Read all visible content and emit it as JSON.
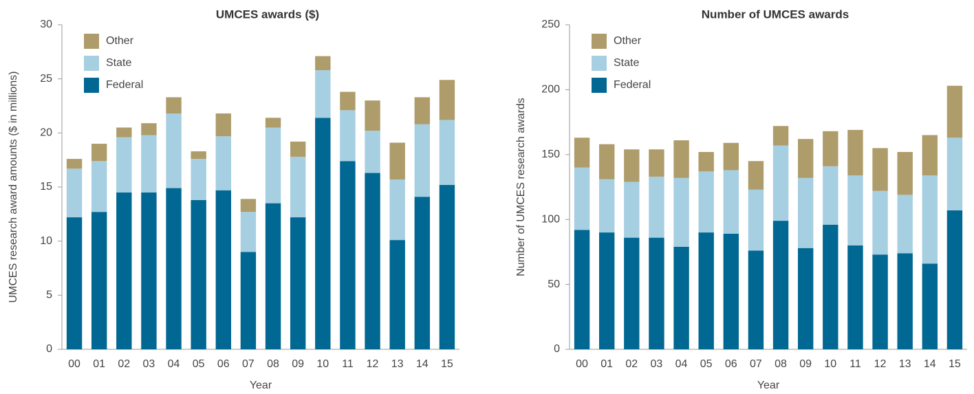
{
  "chart_data": [
    {
      "type": "bar",
      "stacked": true,
      "title": "UMCES awards ($)",
      "x_label": "Year",
      "y_label": "UMCES research award amounts ($ in millions)",
      "categories": [
        "00",
        "01",
        "02",
        "03",
        "04",
        "05",
        "06",
        "07",
        "08",
        "09",
        "10",
        "11",
        "12",
        "13",
        "14",
        "15"
      ],
      "series": [
        {
          "name": "Federal",
          "color": "#006892",
          "values": [
            12.2,
            12.7,
            14.5,
            14.5,
            14.9,
            13.8,
            14.7,
            9.0,
            13.5,
            12.2,
            21.4,
            17.4,
            16.3,
            10.1,
            14.1,
            15.2
          ]
        },
        {
          "name": "State",
          "color": "#a6cfe2",
          "values": [
            4.5,
            4.7,
            5.1,
            5.3,
            6.9,
            3.8,
            5.0,
            3.7,
            7.0,
            5.6,
            4.4,
            4.7,
            3.9,
            5.6,
            6.7,
            6.0
          ]
        },
        {
          "name": "Other",
          "color": "#ae9c6b",
          "values": [
            0.9,
            1.6,
            0.9,
            1.1,
            1.5,
            0.7,
            2.1,
            1.2,
            0.9,
            1.4,
            1.3,
            1.7,
            2.8,
            3.4,
            2.5,
            3.7
          ]
        }
      ],
      "ylim": [
        0,
        30
      ],
      "yticks": [
        0,
        5,
        10,
        15,
        20,
        25,
        30
      ],
      "grid": false,
      "legend": "top-left"
    },
    {
      "type": "bar",
      "stacked": true,
      "title": "Number of UMCES awards",
      "x_label": "Year",
      "y_label": "Number of UMCES research awards",
      "categories": [
        "00",
        "01",
        "02",
        "03",
        "04",
        "05",
        "06",
        "07",
        "08",
        "09",
        "10",
        "11",
        "12",
        "13",
        "14",
        "15"
      ],
      "series": [
        {
          "name": "Federal",
          "color": "#006892",
          "values": [
            92,
            90,
            86,
            86,
            79,
            90,
            89,
            76,
            99,
            78,
            96,
            80,
            73,
            74,
            66,
            107
          ]
        },
        {
          "name": "State",
          "color": "#a6cfe2",
          "values": [
            48,
            41,
            43,
            47,
            53,
            47,
            49,
            47,
            58,
            54,
            45,
            54,
            49,
            45,
            68,
            56
          ]
        },
        {
          "name": "Other",
          "color": "#ae9c6b",
          "values": [
            23,
            27,
            25,
            21,
            29,
            15,
            21,
            22,
            15,
            30,
            27,
            35,
            33,
            33,
            31,
            40
          ]
        }
      ],
      "ylim": [
        0,
        250
      ],
      "yticks": [
        0,
        50,
        100,
        150,
        200,
        250
      ],
      "grid": false,
      "legend": "top-left"
    }
  ]
}
